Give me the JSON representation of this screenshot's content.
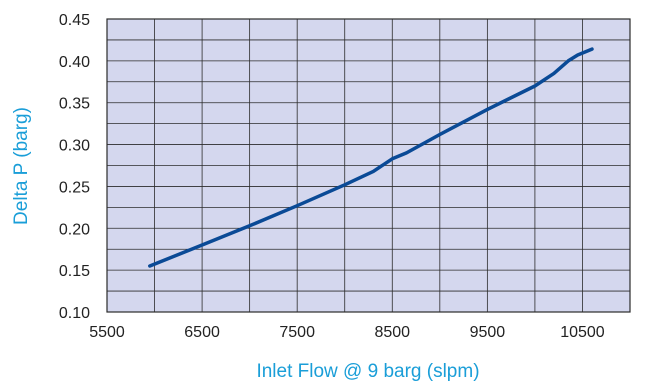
{
  "chart_data": {
    "type": "line",
    "xlabel": "Inlet Flow @ 9 barg (slpm)",
    "ylabel": "Delta P (barg)",
    "xlim": [
      5500,
      11000
    ],
    "ylim": [
      0.1,
      0.45
    ],
    "x_ticks": [
      5500,
      6500,
      7500,
      8500,
      9500,
      10500
    ],
    "x_tick_labels": [
      "5500",
      "6500",
      "7500",
      "8500",
      "9500",
      "10500"
    ],
    "y_ticks": [
      0.1,
      0.15,
      0.2,
      0.25,
      0.3,
      0.35,
      0.4,
      0.45
    ],
    "y_tick_labels": [
      "0.10",
      "0.15",
      "0.20",
      "0.25",
      "0.30",
      "0.35",
      "0.40",
      "0.45"
    ],
    "x_minor_step": 500,
    "y_minor_step": 0.025,
    "grid": true,
    "colors": {
      "plot_background": "#d4d7ee",
      "grid": "#2b2b2b",
      "line": "#0a4a96",
      "axis_title": "#1a9ed8"
    },
    "series": [
      {
        "x": [
          5950,
          6500,
          7000,
          7500,
          8000,
          8300,
          8500,
          8650,
          9000,
          9500,
          10000,
          10200,
          10350,
          10450,
          10600
        ],
        "y": [
          0.155,
          0.18,
          0.203,
          0.227,
          0.252,
          0.268,
          0.283,
          0.29,
          0.312,
          0.342,
          0.37,
          0.385,
          0.4,
          0.407,
          0.414
        ]
      }
    ]
  }
}
